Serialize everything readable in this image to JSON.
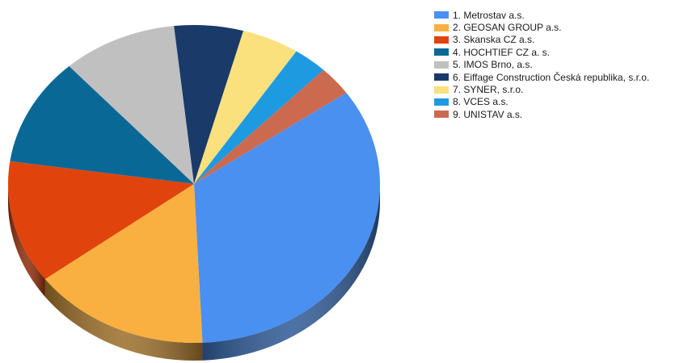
{
  "chart_data": {
    "type": "pie",
    "style": "3d-tilted",
    "legend_position": "top-right",
    "slices": [
      {
        "label": "1. Metrostav a.s.",
        "value": 34.0,
        "color": "#4a90f0"
      },
      {
        "label": "2. GEOSAN GROUP a.s.",
        "value": 15.5,
        "color": "#f9b040"
      },
      {
        "label": "3. Skanska CZ a.s.",
        "value": 12.5,
        "color": "#e0440c"
      },
      {
        "label": "4. HOCHTIEF CZ a. s.",
        "value": 11.0,
        "color": "#0a6896"
      },
      {
        "label": "5. IMOS Brno, a.s.",
        "value": 10.0,
        "color": "#c0c0c0"
      },
      {
        "label": "6. Eiffage Construction Česká republika, s.r.o.",
        "value": 6.0,
        "color": "#1a3a6a"
      },
      {
        "label": "7. SYNER, s.r.o.",
        "value": 5.0,
        "color": "#fbe07e"
      },
      {
        "label": "8. VCES a.s.",
        "value": 3.0,
        "color": "#1e9ae0"
      },
      {
        "label": "9. UNISTAV a.s.",
        "value": 3.0,
        "color": "#cc6a50"
      }
    ]
  }
}
